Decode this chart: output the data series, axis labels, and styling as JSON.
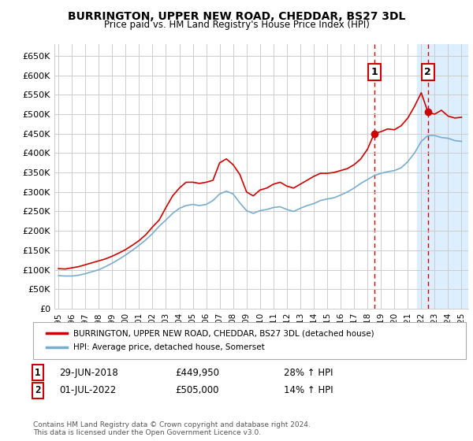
{
  "title": "BURRINGTON, UPPER NEW ROAD, CHEDDAR, BS27 3DL",
  "subtitle": "Price paid vs. HM Land Registry's House Price Index (HPI)",
  "ylabel_ticks": [
    "£0",
    "£50K",
    "£100K",
    "£150K",
    "£200K",
    "£250K",
    "£300K",
    "£350K",
    "£400K",
    "£450K",
    "£500K",
    "£550K",
    "£600K",
    "£650K"
  ],
  "ytick_values": [
    0,
    50000,
    100000,
    150000,
    200000,
    250000,
    300000,
    350000,
    400000,
    450000,
    500000,
    550000,
    600000,
    650000
  ],
  "ylim": [
    0,
    680000
  ],
  "xlim_start": 1994.7,
  "xlim_end": 2025.5,
  "xtick_years": [
    1995,
    1996,
    1997,
    1998,
    1999,
    2000,
    2001,
    2002,
    2003,
    2004,
    2005,
    2006,
    2007,
    2008,
    2009,
    2010,
    2011,
    2012,
    2013,
    2014,
    2015,
    2016,
    2017,
    2018,
    2019,
    2020,
    2021,
    2022,
    2023,
    2024,
    2025
  ],
  "line_color_red": "#cc0000",
  "line_color_blue": "#7aadcc",
  "background_color": "#ffffff",
  "grid_color": "#cccccc",
  "sale1_x": 2018.5,
  "sale1_y": 449950,
  "sale1_label": "1",
  "sale1_date": "29-JUN-2018",
  "sale1_price": "£449,950",
  "sale1_hpi": "28% ↑ HPI",
  "sale2_x": 2022.5,
  "sale2_y": 505000,
  "sale2_label": "2",
  "sale2_date": "01-JUL-2022",
  "sale2_price": "£505,000",
  "sale2_hpi": "14% ↑ HPI",
  "legend_red_label": "BURRINGTON, UPPER NEW ROAD, CHEDDAR, BS27 3DL (detached house)",
  "legend_blue_label": "HPI: Average price, detached house, Somerset",
  "footnote": "Contains HM Land Registry data © Crown copyright and database right 2024.\nThis data is licensed under the Open Government Licence v3.0.",
  "shaded_region_start": 2021.7,
  "shaded_region_end": 2025.5,
  "shaded_color": "#ddeeff",
  "years_red": [
    1995.0,
    1995.5,
    1996.0,
    1996.5,
    1997.0,
    1997.5,
    1998.0,
    1998.5,
    1999.0,
    1999.5,
    2000.0,
    2000.5,
    2001.0,
    2001.5,
    2002.0,
    2002.5,
    2003.0,
    2003.5,
    2004.0,
    2004.5,
    2005.0,
    2005.5,
    2006.0,
    2006.5,
    2007.0,
    2007.5,
    2008.0,
    2008.5,
    2009.0,
    2009.5,
    2010.0,
    2010.5,
    2011.0,
    2011.5,
    2012.0,
    2012.5,
    2013.0,
    2013.5,
    2014.0,
    2014.5,
    2015.0,
    2015.5,
    2016.0,
    2016.5,
    2017.0,
    2017.5,
    2018.0,
    2018.5,
    2019.0,
    2019.5,
    2020.0,
    2020.5,
    2021.0,
    2021.5,
    2022.0,
    2022.5,
    2023.0,
    2023.5,
    2024.0,
    2024.5,
    2025.0
  ],
  "vals_red": [
    103000,
    102000,
    105000,
    108000,
    113000,
    118000,
    123000,
    128000,
    135000,
    143000,
    152000,
    163000,
    175000,
    190000,
    210000,
    228000,
    260000,
    290000,
    310000,
    325000,
    325000,
    322000,
    325000,
    330000,
    375000,
    385000,
    370000,
    345000,
    300000,
    290000,
    305000,
    310000,
    320000,
    325000,
    315000,
    310000,
    320000,
    330000,
    340000,
    348000,
    348000,
    350000,
    355000,
    360000,
    370000,
    385000,
    410000,
    449950,
    455000,
    462000,
    460000,
    470000,
    490000,
    520000,
    555000,
    505000,
    500000,
    510000,
    495000,
    490000,
    492000
  ],
  "years_blue": [
    1995.0,
    1995.5,
    1996.0,
    1996.5,
    1997.0,
    1997.5,
    1998.0,
    1998.5,
    1999.0,
    1999.5,
    2000.0,
    2000.5,
    2001.0,
    2001.5,
    2002.0,
    2002.5,
    2003.0,
    2003.5,
    2004.0,
    2004.5,
    2005.0,
    2005.5,
    2006.0,
    2006.5,
    2007.0,
    2007.5,
    2008.0,
    2008.5,
    2009.0,
    2009.5,
    2010.0,
    2010.5,
    2011.0,
    2011.5,
    2012.0,
    2012.5,
    2013.0,
    2013.5,
    2014.0,
    2014.5,
    2015.0,
    2015.5,
    2016.0,
    2016.5,
    2017.0,
    2017.5,
    2018.0,
    2018.5,
    2019.0,
    2019.5,
    2020.0,
    2020.5,
    2021.0,
    2021.5,
    2022.0,
    2022.5,
    2023.0,
    2023.5,
    2024.0,
    2024.5,
    2025.0
  ],
  "vals_blue": [
    85000,
    84000,
    84000,
    86000,
    90000,
    95000,
    100000,
    108000,
    117000,
    127000,
    138000,
    150000,
    163000,
    177000,
    193000,
    212000,
    228000,
    245000,
    258000,
    265000,
    268000,
    265000,
    268000,
    278000,
    295000,
    302000,
    295000,
    272000,
    252000,
    245000,
    252000,
    255000,
    260000,
    262000,
    255000,
    250000,
    258000,
    265000,
    270000,
    278000,
    282000,
    285000,
    292000,
    300000,
    310000,
    322000,
    332000,
    342000,
    348000,
    352000,
    355000,
    362000,
    378000,
    400000,
    430000,
    445000,
    445000,
    440000,
    438000,
    432000,
    430000
  ]
}
